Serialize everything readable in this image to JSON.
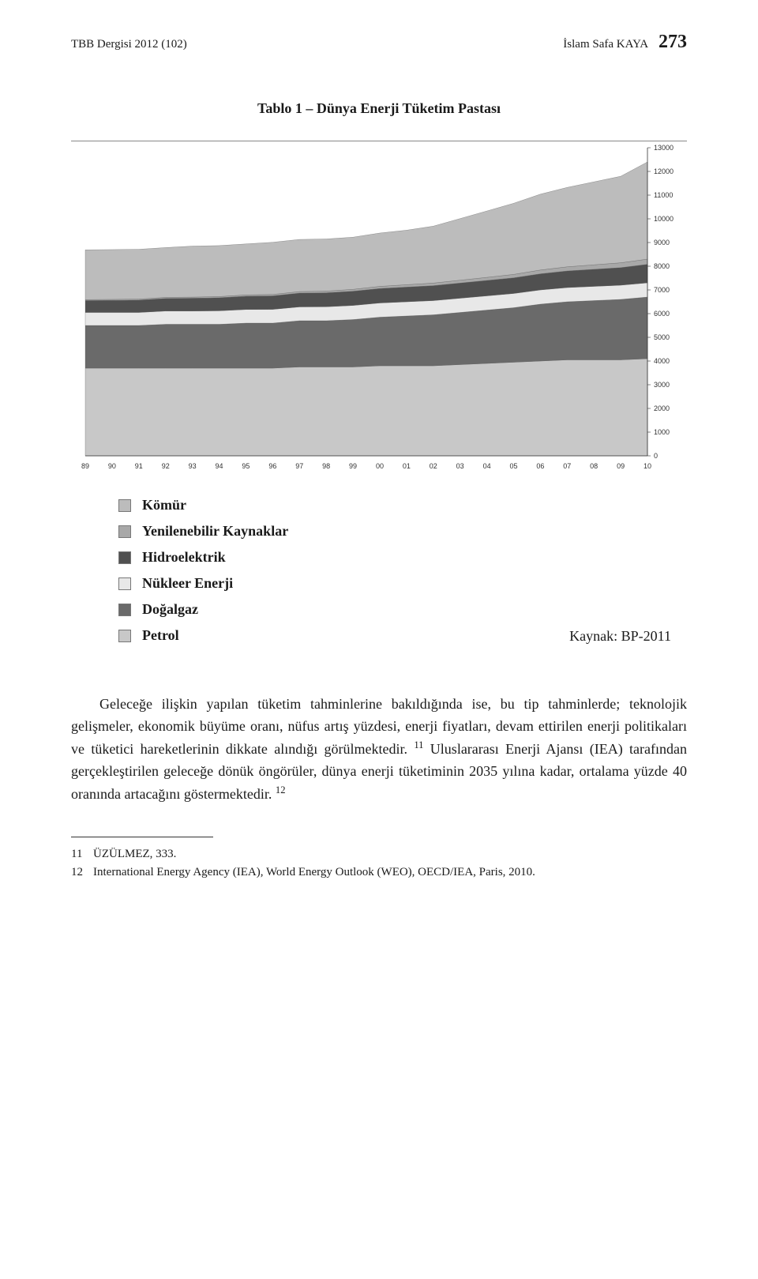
{
  "header": {
    "journal": "TBB Dergisi 2012 (102)",
    "author": "İslam Safa KAYA",
    "page_number": "273"
  },
  "figure_title": "Tablo 1 – Dünya Enerji Tüketim Pastası",
  "chart": {
    "type": "stacked-area",
    "x_labels": [
      "89",
      "90",
      "91",
      "92",
      "93",
      "94",
      "95",
      "96",
      "97",
      "98",
      "99",
      "00",
      "01",
      "02",
      "03",
      "04",
      "05",
      "06",
      "07",
      "08",
      "09",
      "10"
    ],
    "y_ticks": [
      0,
      1000,
      2000,
      3000,
      4000,
      5000,
      6000,
      7000,
      8000,
      9000,
      10000,
      11000,
      12000,
      13000
    ],
    "ylim": [
      0,
      13000
    ],
    "y_axis_side": "right",
    "series": [
      {
        "name": "Petrol",
        "color": "#c8c8c8",
        "values": [
          3700,
          3700,
          3700,
          3700,
          3700,
          3700,
          3700,
          3700,
          3750,
          3750,
          3750,
          3800,
          3800,
          3800,
          3850,
          3900,
          3950,
          4000,
          4050,
          4050,
          4050,
          4100
        ]
      },
      {
        "name": "Doğalgaz",
        "color": "#6a6a6a",
        "values": [
          1800,
          1800,
          1800,
          1850,
          1850,
          1850,
          1900,
          1900,
          1950,
          1950,
          2000,
          2050,
          2100,
          2150,
          2200,
          2250,
          2300,
          2400,
          2450,
          2500,
          2550,
          2600
        ]
      },
      {
        "name": "Nükleer Enerji",
        "color": "#e8e8e8",
        "values": [
          550,
          550,
          550,
          560,
          560,
          570,
          575,
          580,
          585,
          590,
          595,
          600,
          600,
          600,
          600,
          600,
          600,
          600,
          600,
          600,
          600,
          600
        ]
      },
      {
        "name": "Hidroelektrik",
        "color": "#505050",
        "values": [
          500,
          510,
          520,
          530,
          540,
          550,
          560,
          570,
          580,
          590,
          600,
          610,
          620,
          630,
          640,
          650,
          660,
          680,
          700,
          720,
          740,
          780
        ]
      },
      {
        "name": "Yenilenebilir Kaynaklar",
        "color": "#a8a8a8",
        "values": [
          40,
          42,
          44,
          46,
          48,
          50,
          55,
          60,
          65,
          70,
          80,
          90,
          100,
          110,
          120,
          130,
          145,
          160,
          175,
          190,
          205,
          220
        ]
      },
      {
        "name": "Kömür",
        "color": "#bcbcbc",
        "values": [
          2100,
          2100,
          2100,
          2100,
          2150,
          2150,
          2150,
          2200,
          2200,
          2200,
          2200,
          2250,
          2300,
          2400,
          2600,
          2800,
          3000,
          3200,
          3350,
          3500,
          3650,
          4100
        ]
      }
    ],
    "background_color": "#ffffff",
    "grid_color": "#d9d9d9",
    "axis_fontsize": 9,
    "axis_font": "Arial"
  },
  "legend": {
    "items": [
      {
        "label": "Kömür",
        "swatch": "#bcbcbc"
      },
      {
        "label": "Yenilenebilir Kaynaklar",
        "swatch": "#a8a8a8"
      },
      {
        "label": "Hidroelektrik",
        "swatch": "#505050"
      },
      {
        "label": "Nükleer Enerji",
        "swatch": "#e8e8e8"
      },
      {
        "label": "Doğalgaz",
        "swatch": "#6a6a6a"
      },
      {
        "label": "Petrol",
        "swatch": "#c8c8c8"
      }
    ]
  },
  "source_line": "Kaynak: BP-2011",
  "body_paragraph_html": "Geleceğe ilişkin yapılan tüketim tahminlerine bakıldığında ise, bu tip tahminlerde; teknolojik gelişmeler, ekonomik büyüme oranı, nüfus artış yüzdesi, enerji fiyatları, devam ettirilen enerji politikaları ve tüketici hareketlerinin dikkate alındığı görülmektedir. <sup>11</sup> Uluslararası Enerji Ajansı (IEA) tarafından gerçekleştirilen geleceğe dönük öngörüler, dünya enerji tüketiminin 2035 yılına kadar, ortalama yüzde 40 oranında artacağını göstermektedir. <sup>12</sup>",
  "footnotes": [
    {
      "num": "11",
      "text": "ÜZÜLMEZ, 333."
    },
    {
      "num": "12",
      "text": "International Energy Agency (IEA), World Energy Outlook (WEO), OECD/IEA, Paris, 2010."
    }
  ]
}
